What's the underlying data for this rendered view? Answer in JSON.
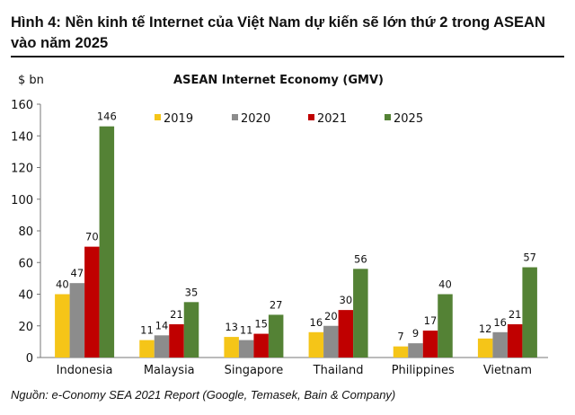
{
  "figure_title": "Hình 4: Nền kinh tế Internet của Việt Nam dự kiến sẽ lớn thứ 2 trong ASEAN vào năm 2025",
  "source": "Nguồn: e-Conomy SEA 2021 Report (Google, Temasek, Bain & Company)",
  "chart_data": {
    "type": "bar",
    "title": "ASEAN Internet Economy (GMV)",
    "ylabel": "$ bn",
    "xlabel": "",
    "ylim": [
      0,
      160
    ],
    "yticks": [
      0,
      20,
      40,
      60,
      80,
      100,
      120,
      140,
      160
    ],
    "legend_position": "top-right",
    "categories": [
      "Indonesia",
      "Malaysia",
      "Singapore",
      "Thailand",
      "Philippines",
      "Vietnam"
    ],
    "series": [
      {
        "name": "2019",
        "color": "#f5c518",
        "values": [
          40,
          11,
          13,
          16,
          7,
          12
        ]
      },
      {
        "name": "2020",
        "color": "#8c8c8c",
        "values": [
          47,
          14,
          11,
          20,
          9,
          16
        ]
      },
      {
        "name": "2021",
        "color": "#c00000",
        "values": [
          70,
          21,
          15,
          30,
          17,
          21
        ]
      },
      {
        "name": "2025",
        "color": "#548235",
        "values": [
          146,
          35,
          27,
          56,
          40,
          57
        ]
      }
    ]
  }
}
